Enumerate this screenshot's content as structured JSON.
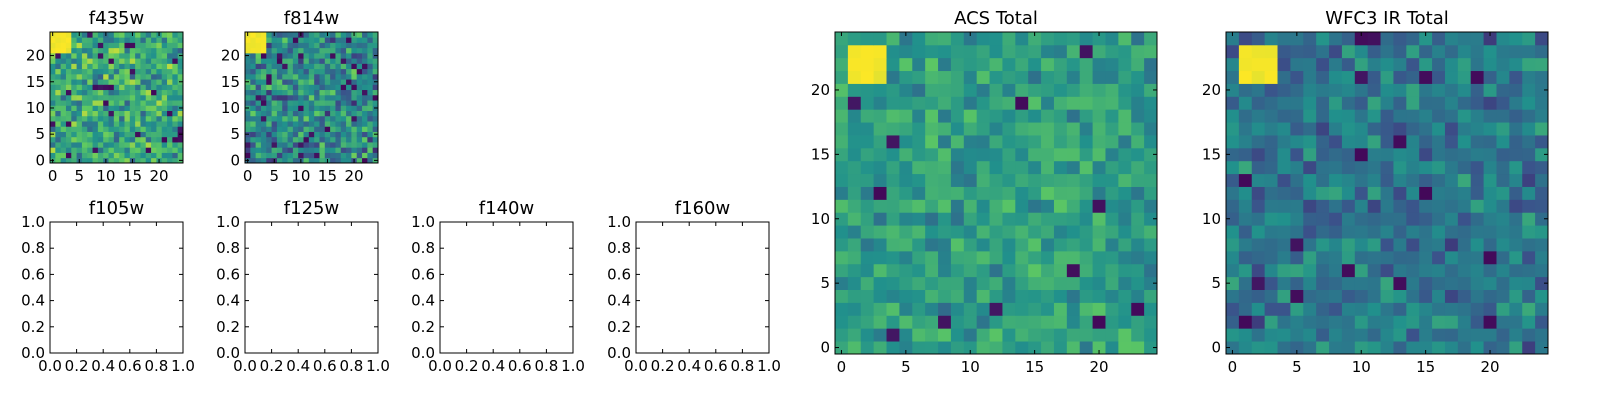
{
  "figure": {
    "background": "#ffffff",
    "colormap": "viridis",
    "colormap_stops": [
      "#440154",
      "#3b528b",
      "#21918c",
      "#5ec962",
      "#fde725"
    ]
  },
  "chart_data": [
    {
      "type": "heatmap",
      "title": "f435w",
      "grid_size": 25,
      "xlim": [
        -0.5,
        24.5
      ],
      "ylim": [
        -0.5,
        24.5
      ],
      "xticks": [
        "0",
        "5",
        "10",
        "15",
        "20"
      ],
      "yticks": [
        "0",
        "5",
        "10",
        "15",
        "20"
      ],
      "bright_spot": {
        "x": [
          0,
          3
        ],
        "y": [
          21,
          24
        ]
      }
    },
    {
      "type": "heatmap",
      "title": "f814w",
      "grid_size": 25,
      "xlim": [
        -0.5,
        24.5
      ],
      "ylim": [
        -0.5,
        24.5
      ],
      "xticks": [
        "0",
        "5",
        "10",
        "15",
        "20"
      ],
      "yticks": [
        "0",
        "5",
        "10",
        "15",
        "20"
      ],
      "bright_spot": {
        "x": [
          0,
          3
        ],
        "y": [
          21,
          24
        ]
      }
    },
    {
      "type": "empty",
      "title": "f105w",
      "xlim": [
        0,
        1
      ],
      "ylim": [
        0,
        1
      ],
      "xticks": [
        "0.0",
        "0.2",
        "0.4",
        "0.6",
        "0.8",
        "1.0"
      ],
      "yticks": [
        "0.0",
        "0.2",
        "0.4",
        "0.6",
        "0.8",
        "1.0"
      ]
    },
    {
      "type": "empty",
      "title": "f125w",
      "xlim": [
        0,
        1
      ],
      "ylim": [
        0,
        1
      ],
      "xticks": [
        "0.0",
        "0.2",
        "0.4",
        "0.6",
        "0.8",
        "1.0"
      ],
      "yticks": [
        "0.0",
        "0.2",
        "0.4",
        "0.6",
        "0.8",
        "1.0"
      ]
    },
    {
      "type": "empty",
      "title": "f140w",
      "xlim": [
        0,
        1
      ],
      "ylim": [
        0,
        1
      ],
      "xticks": [
        "0.0",
        "0.2",
        "0.4",
        "0.6",
        "0.8",
        "1.0"
      ],
      "yticks": [
        "0.0",
        "0.2",
        "0.4",
        "0.6",
        "0.8",
        "1.0"
      ]
    },
    {
      "type": "empty",
      "title": "f160w",
      "xlim": [
        0,
        1
      ],
      "ylim": [
        0,
        1
      ],
      "xticks": [
        "0.0",
        "0.2",
        "0.4",
        "0.6",
        "0.8",
        "1.0"
      ],
      "yticks": [
        "0.0",
        "0.2",
        "0.4",
        "0.6",
        "0.8",
        "1.0"
      ]
    },
    {
      "type": "heatmap",
      "title": "ACS Total",
      "grid_size": 25,
      "xlim": [
        -0.5,
        24.5
      ],
      "ylim": [
        -0.5,
        24.5
      ],
      "xticks": [
        "0",
        "5",
        "10",
        "15",
        "20"
      ],
      "yticks": [
        "0",
        "5",
        "10",
        "15",
        "20"
      ],
      "bright_spot": {
        "x": [
          1,
          3
        ],
        "y": [
          21,
          23
        ]
      }
    },
    {
      "type": "heatmap",
      "title": "WFC3 IR Total",
      "grid_size": 25,
      "xlim": [
        -0.5,
        24.5
      ],
      "ylim": [
        -0.5,
        24.5
      ],
      "xticks": [
        "0",
        "5",
        "10",
        "15",
        "20"
      ],
      "yticks": [
        "0",
        "5",
        "10",
        "15",
        "20"
      ],
      "bright_spot": {
        "x": [
          1,
          3
        ],
        "y": [
          21,
          23
        ]
      }
    }
  ]
}
